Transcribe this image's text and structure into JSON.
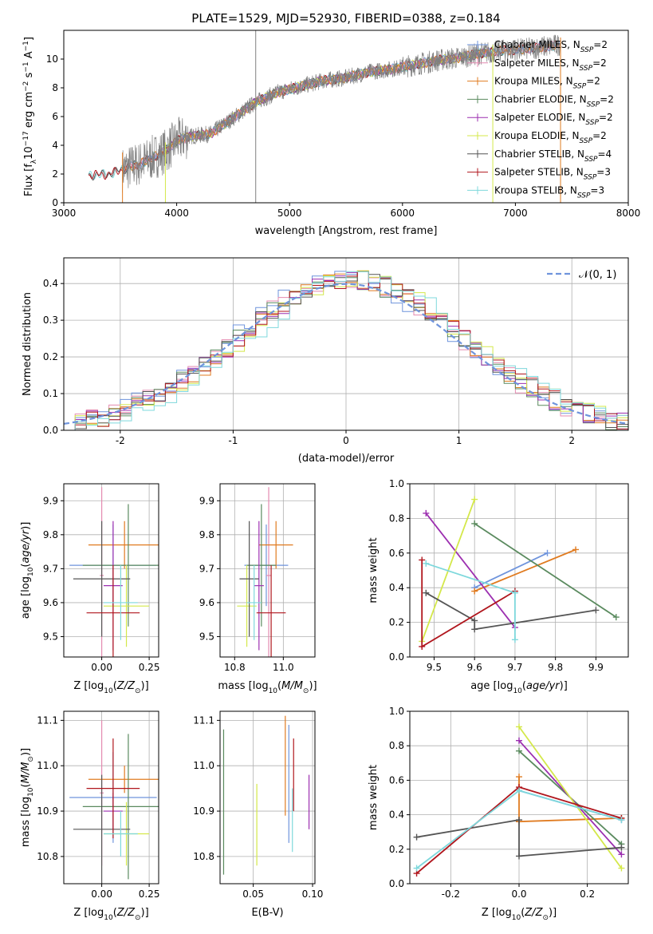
{
  "figure": {
    "title": "PLATE=1529, MJD=52930, FIBERID=0388, z=0.184",
    "colors": {
      "Chabrier MILES": "#6f94dc",
      "Salpeter MILES": "#e48ab0",
      "Kroupa MILES": "#e07b20",
      "Chabrier ELODIE": "#5a8a5e",
      "Salpeter ELODIE": "#9c2fb0",
      "Kroupa ELODIE": "#d4e84a",
      "Chabrier STELIB": "#555555",
      "Salpeter STELIB": "#b0161d",
      "Kroupa STELIB": "#7ed8dc",
      "normal": "#6f94dc",
      "grid": "#b0b0b0"
    }
  },
  "chart_data": [
    {
      "id": "spectrum",
      "type": "line",
      "xlabel": "wavelength [Angstrom, rest frame]",
      "ylabel": "Flux [f_λ 10^-17 erg cm^-2 s^-1 A^-1]",
      "xlim": [
        3000,
        8000
      ],
      "ylim": [
        0,
        12
      ],
      "xticks": [
        3000,
        4000,
        5000,
        6000,
        7000,
        8000
      ],
      "yticks": [
        0,
        2,
        4,
        6,
        8,
        10
      ],
      "grid": false,
      "legend_position": "top-right",
      "legend": [
        {
          "name": "Chabrier MILES",
          "nssp": "2"
        },
        {
          "name": "Salpeter MILES",
          "nssp": "2"
        },
        {
          "name": "Kroupa MILES",
          "nssp": "2"
        },
        {
          "name": "Chabrier ELODIE",
          "nssp": "2"
        },
        {
          "name": "Salpeter ELODIE",
          "nssp": "2"
        },
        {
          "name": "Kroupa ELODIE",
          "nssp": "2"
        },
        {
          "name": "Chabrier STELIB",
          "nssp": "4"
        },
        {
          "name": "Salpeter STELIB",
          "nssp": "3"
        },
        {
          "name": "Kroupa STELIB",
          "nssp": "3"
        }
      ],
      "continuum": {
        "x": [
          3220,
          3400,
          3520,
          3700,
          3900,
          4000,
          4100,
          4300,
          4500,
          4700,
          4900,
          5100,
          5300,
          5500,
          5700,
          5900,
          6100,
          6300,
          6500,
          6700,
          6900,
          7100,
          7300,
          7400,
          7520
        ],
        "y": [
          1.9,
          2.0,
          2.3,
          2.8,
          3.6,
          4.3,
          4.6,
          4.8,
          5.9,
          7.0,
          7.7,
          8.1,
          8.5,
          8.7,
          9.1,
          9.3,
          9.6,
          9.9,
          10.1,
          10.4,
          10.6,
          10.7,
          10.9,
          11.0,
          11.5
        ]
      },
      "model_ranges": {
        "MILES": [
          3540,
          7400
        ],
        "ELODIE": [
          3900,
          6800
        ],
        "STELIB": [
          3220,
          7400
        ],
        "data": [
          3520,
          7400
        ]
      }
    },
    {
      "id": "residuals",
      "type": "line",
      "xlabel": "(data-model)/error",
      "ylabel": "Normed distribution",
      "xlim": [
        -2.5,
        2.5
      ],
      "ylim": [
        0,
        0.47
      ],
      "xticks": [
        -2,
        -1,
        0,
        1,
        2
      ],
      "yticks": [
        0.0,
        0.1,
        0.2,
        0.3,
        0.4
      ],
      "grid": true,
      "legend_position": "top-right",
      "normal_label": "𝒩(0, 1)"
    },
    {
      "id": "age_vs_Z",
      "type": "scatter",
      "xlabel": "Z [log10(Z/Z☉)]",
      "ylabel": "age [log10(age/yr)]",
      "xlim": [
        -0.2,
        0.3
      ],
      "ylim": [
        9.44,
        9.95
      ],
      "xticks": [
        0.0,
        0.25
      ],
      "yticks": [
        9.5,
        9.6,
        9.7,
        9.8,
        9.9
      ],
      "grid": true,
      "series": [
        {
          "name": "Chabrier MILES",
          "x": 0.06,
          "xerr": 0.23,
          "y": 9.71,
          "yerr": 0.12
        },
        {
          "name": "Salpeter MILES",
          "x": 0.0,
          "xerr": 0.01,
          "y": 9.68,
          "yerr": 0.26
        },
        {
          "name": "Kroupa MILES",
          "x": 0.12,
          "xerr": 0.19,
          "y": 9.77,
          "yerr": 0.07
        },
        {
          "name": "Chabrier ELODIE",
          "x": 0.14,
          "xerr": 0.24,
          "y": 9.71,
          "yerr": 0.18
        },
        {
          "name": "Salpeter ELODIE",
          "x": 0.06,
          "xerr": 0.05,
          "y": 9.65,
          "yerr": 0.19
        },
        {
          "name": "Kroupa ELODIE",
          "x": 0.13,
          "xerr": 0.12,
          "y": 9.59,
          "yerr": 0.12
        },
        {
          "name": "Chabrier STELIB",
          "x": 0.0,
          "xerr": 0.15,
          "y": 9.67,
          "yerr": 0.17
        },
        {
          "name": "Salpeter STELIB",
          "x": 0.06,
          "xerr": 0.14,
          "y": 9.57,
          "yerr": 0.14
        },
        {
          "name": "Kroupa STELIB",
          "x": 0.1,
          "xerr": 0.09,
          "y": 9.6,
          "yerr": 0.11
        }
      ]
    },
    {
      "id": "age_vs_mass",
      "type": "scatter",
      "xlabel": "mass [log10(M/M☉)]",
      "ylabel": "",
      "xlim": [
        10.74,
        11.13
      ],
      "ylim": [
        9.44,
        9.95
      ],
      "xticks": [
        10.8,
        11.0
      ],
      "yticks": [
        9.5,
        9.6,
        9.7,
        9.8,
        9.9
      ],
      "grid": true,
      "series": [
        {
          "name": "Chabrier MILES",
          "x": 10.93,
          "xerr": 0.09,
          "y": 9.71,
          "yerr": 0.12
        },
        {
          "name": "Salpeter MILES",
          "x": 10.94,
          "xerr": 0.01,
          "y": 9.68,
          "yerr": 0.26
        },
        {
          "name": "Kroupa MILES",
          "x": 10.97,
          "xerr": 0.07,
          "y": 9.77,
          "yerr": 0.07
        },
        {
          "name": "Chabrier ELODIE",
          "x": 10.91,
          "xerr": 0.06,
          "y": 9.71,
          "yerr": 0.18
        },
        {
          "name": "Salpeter ELODIE",
          "x": 10.9,
          "xerr": 0.02,
          "y": 9.65,
          "yerr": 0.19
        },
        {
          "name": "Kroupa ELODIE",
          "x": 10.85,
          "xerr": 0.04,
          "y": 9.59,
          "yerr": 0.12
        },
        {
          "name": "Chabrier STELIB",
          "x": 10.86,
          "xerr": 0.04,
          "y": 9.67,
          "yerr": 0.17
        },
        {
          "name": "Salpeter STELIB",
          "x": 10.95,
          "xerr": 0.06,
          "y": 9.57,
          "yerr": 0.14
        },
        {
          "name": "Kroupa STELIB",
          "x": 10.88,
          "xerr": 0.03,
          "y": 9.6,
          "yerr": 0.11
        }
      ]
    },
    {
      "id": "weight_vs_age",
      "type": "line",
      "xlabel": "age [log10(age/yr)]",
      "ylabel": "mass weight",
      "xlim": [
        9.44,
        9.98
      ],
      "ylim": [
        0,
        1
      ],
      "xticks": [
        9.5,
        9.6,
        9.7,
        9.8,
        9.9
      ],
      "yticks": [
        0.0,
        0.2,
        0.4,
        0.6,
        0.8,
        1.0
      ],
      "grid": true,
      "series": [
        {
          "name": "Chabrier MILES",
          "x": [
            9.6,
            9.78
          ],
          "y": [
            0.4,
            0.6
          ]
        },
        {
          "name": "Kroupa MILES",
          "x": [
            9.6,
            9.85
          ],
          "y": [
            0.38,
            0.62
          ]
        },
        {
          "name": "Chabrier ELODIE",
          "x": [
            9.6,
            9.95
          ],
          "y": [
            0.77,
            0.23
          ]
        },
        {
          "name": "Salpeter ELODIE",
          "x": [
            9.48,
            9.7
          ],
          "y": [
            0.83,
            0.17
          ]
        },
        {
          "name": "Kroupa ELODIE",
          "x": [
            9.47,
            9.6
          ],
          "y": [
            0.09,
            0.91
          ]
        },
        {
          "name": "Chabrier STELIB",
          "x": [
            9.48,
            9.6,
            9.6,
            9.9
          ],
          "y": [
            0.37,
            0.21,
            0.16,
            0.27
          ]
        },
        {
          "name": "Salpeter STELIB",
          "x": [
            9.47,
            9.47,
            9.7
          ],
          "y": [
            0.56,
            0.06,
            0.38
          ]
        },
        {
          "name": "Kroupa STELIB",
          "x": [
            9.48,
            9.7,
            9.7
          ],
          "y": [
            0.54,
            0.37,
            0.1
          ]
        }
      ]
    },
    {
      "id": "mass_vs_Z",
      "type": "scatter",
      "xlabel": "Z [log10(Z/Z☉)]",
      "ylabel": "mass [log10(M/M☉)]",
      "xlim": [
        -0.2,
        0.3
      ],
      "ylim": [
        10.74,
        11.12
      ],
      "xticks": [
        0.0,
        0.25
      ],
      "yticks": [
        10.8,
        10.9,
        11.0,
        11.1
      ],
      "grid": true,
      "series": [
        {
          "name": "Chabrier MILES",
          "x": 0.06,
          "xerr": 0.23,
          "y": 10.93,
          "yerr": 0.1
        },
        {
          "name": "Salpeter MILES",
          "x": 0.0,
          "xerr": 0.01,
          "y": 10.94,
          "yerr": 0.16
        },
        {
          "name": "Kroupa MILES",
          "x": 0.12,
          "xerr": 0.19,
          "y": 10.97,
          "yerr": 0.03
        },
        {
          "name": "Chabrier ELODIE",
          "x": 0.14,
          "xerr": 0.24,
          "y": 10.91,
          "yerr": 0.16
        },
        {
          "name": "Salpeter ELODIE",
          "x": 0.06,
          "xerr": 0.05,
          "y": 10.9,
          "yerr": 0.04
        },
        {
          "name": "Kroupa ELODIE",
          "x": 0.13,
          "xerr": 0.12,
          "y": 10.85,
          "yerr": 0.07
        },
        {
          "name": "Chabrier STELIB",
          "x": 0.0,
          "xerr": 0.15,
          "y": 10.86,
          "yerr": 0.12
        },
        {
          "name": "Salpeter STELIB",
          "x": 0.06,
          "xerr": 0.14,
          "y": 10.95,
          "yerr": 0.11
        },
        {
          "name": "Kroupa STELIB",
          "x": 0.1,
          "xerr": 0.09,
          "y": 10.85,
          "yerr": 0.05
        }
      ]
    },
    {
      "id": "mass_vs_ebv",
      "type": "scatter",
      "xlabel": "E(B-V)",
      "ylabel": "",
      "xlim": [
        0.022,
        0.102
      ],
      "ylim": [
        10.74,
        11.12
      ],
      "xticks": [
        0.05,
        0.1
      ],
      "yticks": [
        10.8,
        10.9,
        11.0,
        11.1
      ],
      "grid": true,
      "series": [
        {
          "name": "Chabrier MILES",
          "x": 0.08,
          "y": 10.96,
          "yerr": 0.13
        },
        {
          "name": "Kroupa MILES",
          "x": 0.077,
          "y": 11.0,
          "yerr": 0.11
        },
        {
          "name": "Chabrier ELODIE",
          "x": 0.025,
          "y": 10.92,
          "yerr": 0.16
        },
        {
          "name": "Salpeter ELODIE",
          "x": 0.097,
          "y": 10.92,
          "yerr": 0.06
        },
        {
          "name": "Kroupa ELODIE",
          "x": 0.053,
          "y": 10.87,
          "yerr": 0.09
        },
        {
          "name": "Salpeter STELIB",
          "x": 0.084,
          "y": 10.98,
          "yerr": 0.08
        },
        {
          "name": "Kroupa STELIB",
          "x": 0.083,
          "y": 10.88,
          "yerr": 0.07
        }
      ]
    },
    {
      "id": "weight_vs_Z",
      "type": "line",
      "xlabel": "Z [log10(Z/Z☉)]",
      "ylabel": "mass weight",
      "xlim": [
        -0.32,
        0.32
      ],
      "ylim": [
        0,
        1
      ],
      "xticks": [
        -0.2,
        0.0,
        0.2
      ],
      "yticks": [
        0.0,
        0.2,
        0.4,
        0.6,
        0.8,
        1.0
      ],
      "grid": true,
      "series": [
        {
          "name": "Chabrier MILES",
          "x": [
            0.0,
            0.3
          ],
          "y": [
            0.54,
            0.37
          ]
        },
        {
          "name": "Kroupa MILES",
          "x": [
            0.0,
            0.0,
            0.3
          ],
          "y": [
            0.62,
            0.36,
            0.38
          ]
        },
        {
          "name": "Chabrier ELODIE",
          "x": [
            0.0,
            0.3
          ],
          "y": [
            0.77,
            0.23
          ]
        },
        {
          "name": "Salpeter ELODIE",
          "x": [
            0.0,
            0.3
          ],
          "y": [
            0.83,
            0.17
          ]
        },
        {
          "name": "Kroupa ELODIE",
          "x": [
            0.0,
            0.3
          ],
          "y": [
            0.91,
            0.09
          ]
        },
        {
          "name": "Chabrier STELIB",
          "x": [
            -0.3,
            0.0,
            0.0,
            0.3
          ],
          "y": [
            0.27,
            0.37,
            0.16,
            0.21
          ]
        },
        {
          "name": "Salpeter STELIB",
          "x": [
            -0.3,
            0.0,
            0.3
          ],
          "y": [
            0.06,
            0.56,
            0.38
          ]
        },
        {
          "name": "Kroupa STELIB",
          "x": [
            -0.3,
            0.0,
            0.3
          ],
          "y": [
            0.09,
            0.54,
            0.37
          ]
        }
      ]
    }
  ]
}
